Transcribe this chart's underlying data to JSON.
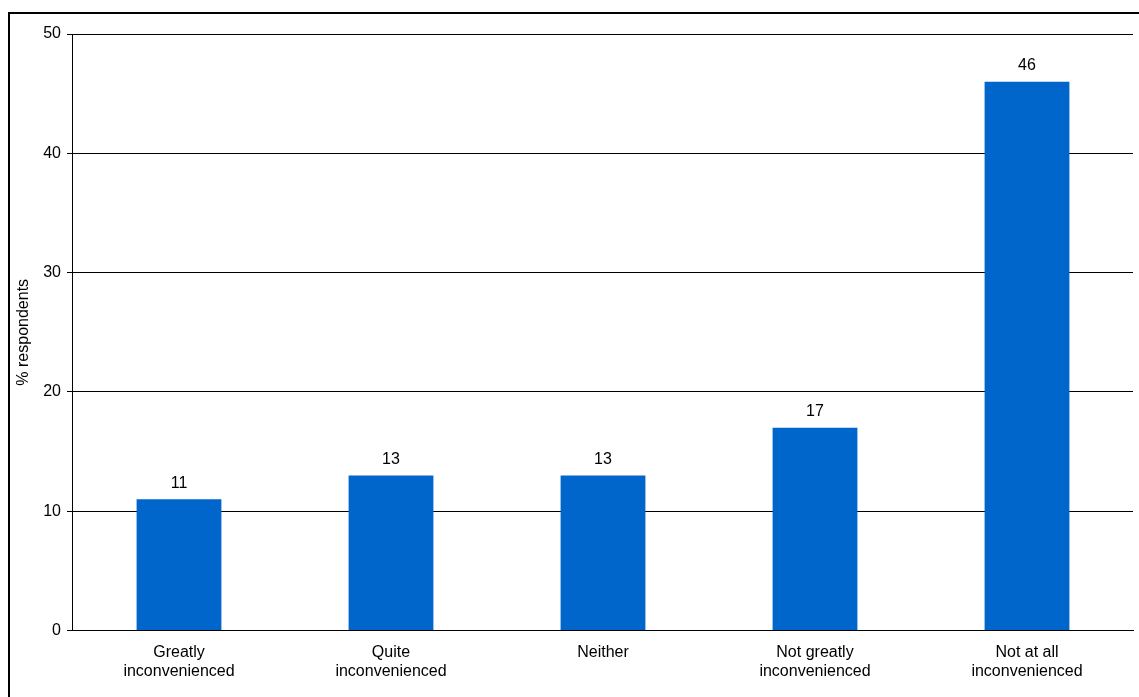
{
  "chart_data": {
    "type": "bar",
    "ylabel": "% respondents",
    "categories": [
      "Greatly inconvenienced",
      "Quite inconvenienced",
      "Neither",
      "Not greatly inconvenienced",
      "Not at all inconvenienced"
    ],
    "values": [
      11,
      13,
      13,
      17,
      46
    ],
    "color": "#0066cc",
    "ylim": [
      0,
      50
    ],
    "yticks": [
      0,
      10,
      20,
      30,
      40,
      50
    ],
    "grid": "y",
    "data_labels": true
  }
}
